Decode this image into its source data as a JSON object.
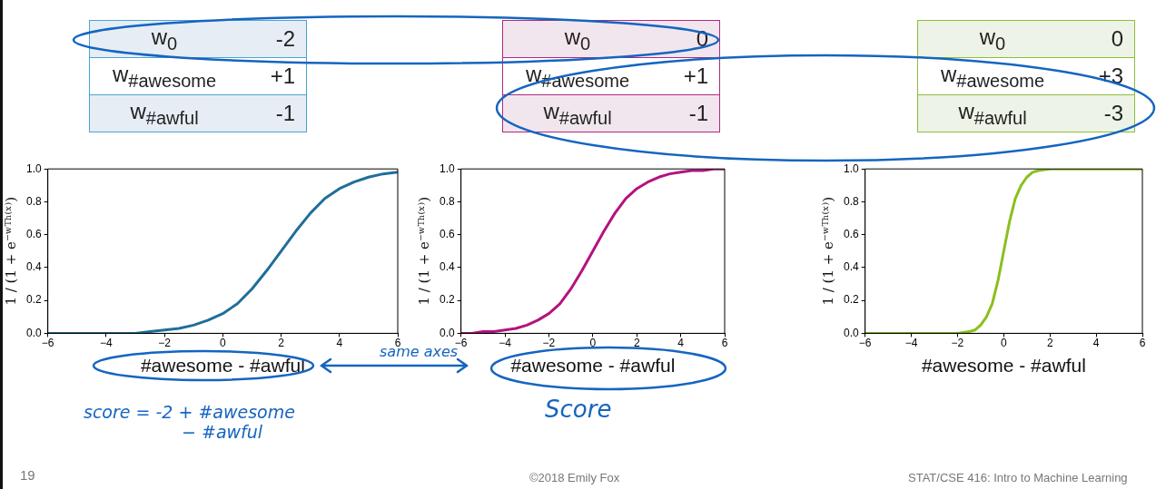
{
  "chart_data": [
    {
      "type": "line",
      "xlabel": "#awesome - #awful",
      "ylabel": "1 / (1 + e⁻ʷᵀʰ⁽ˣ⁾)",
      "x": [
        -6,
        -5.5,
        -5,
        -4.5,
        -4,
        -3.5,
        -3,
        -2.5,
        -2,
        -1.5,
        -1,
        -0.5,
        0,
        0.5,
        1,
        1.5,
        2,
        2.5,
        3,
        3.5,
        4,
        4.5,
        5,
        5.5,
        6
      ],
      "series": [
        {
          "color": "#1f6e9a",
          "values": [
            0.0,
            0.0,
            0.0,
            0.0,
            0.0,
            0.0,
            0.0,
            0.01,
            0.02,
            0.03,
            0.05,
            0.08,
            0.12,
            0.18,
            0.27,
            0.38,
            0.5,
            0.62,
            0.73,
            0.82,
            0.88,
            0.92,
            0.95,
            0.97,
            0.98
          ]
        }
      ],
      "xlim": [
        -6,
        6
      ],
      "ylim": [
        0,
        1
      ],
      "xticks": [
        {
          "value": -6,
          "label": "−6"
        },
        {
          "value": -4,
          "label": "−4"
        },
        {
          "value": -2,
          "label": "−2"
        },
        0,
        2,
        4,
        6
      ],
      "yticks": [
        {
          "value": 0,
          "label": "0.0"
        },
        {
          "value": 0.2,
          "label": "0.2"
        },
        {
          "value": 0.4,
          "label": "0.4"
        },
        {
          "value": 0.6,
          "label": "0.6"
        },
        {
          "value": 0.8,
          "label": "0.8"
        },
        {
          "value": 1,
          "label": "1.0"
        }
      ],
      "annotations": [
        "w$_{0}$",
        "-2",
        "w$_{#awesome}$",
        "+1",
        "w$_{#awful}$",
        "-1",
        "score = -2 + #awesome",
        "− #awful",
        "same axes",
        "19"
      ]
    },
    {
      "type": "line",
      "xlabel": "#awesome - #awful",
      "ylabel": "1 / (1 + e⁻ʷᵀʰ⁽ˣ⁾)",
      "x": [
        -6,
        -5.5,
        -5,
        -4.5,
        -4,
        -3.5,
        -3,
        -2.5,
        -2,
        -1.5,
        -1,
        -0.5,
        0,
        0.5,
        1,
        1.5,
        2,
        2.5,
        3,
        3.5,
        4,
        4.5,
        5,
        5.5,
        6
      ],
      "series": [
        {
          "color": "#b5127f",
          "values": [
            0.0,
            0.0,
            0.01,
            0.01,
            0.02,
            0.03,
            0.05,
            0.08,
            0.12,
            0.18,
            0.27,
            0.38,
            0.5,
            0.62,
            0.73,
            0.82,
            0.88,
            0.92,
            0.95,
            0.97,
            0.98,
            0.99,
            0.99,
            1.0,
            1.0
          ]
        }
      ],
      "xlim": [
        -6,
        6
      ],
      "ylim": [
        0,
        1
      ],
      "xticks": [
        {
          "value": -6,
          "label": "−6"
        },
        {
          "value": -4,
          "label": "−4"
        },
        {
          "value": -2,
          "label": "−2"
        },
        0,
        2,
        4,
        6
      ],
      "yticks": [
        {
          "value": 0,
          "label": "0.0"
        },
        {
          "value": 0.2,
          "label": "0.2"
        },
        {
          "value": 0.4,
          "label": "0.4"
        },
        {
          "value": 0.6,
          "label": "0.6"
        },
        {
          "value": 0.8,
          "label": "0.8"
        },
        {
          "value": 1,
          "label": "1.0"
        }
      ],
      "annotations": [
        "w$_{0}$",
        "0",
        "w$_{#awesome}$",
        "+1",
        "w$_{#awful}$",
        "-1",
        "Score",
        "©2018 Emily Fox"
      ]
    },
    {
      "type": "line",
      "xlabel": "#awesome - #awful",
      "ylabel": "1 / (1 + e⁻ʷᵀʰ⁽ˣ⁾)",
      "x": [
        -6,
        -3,
        -2,
        -1.5,
        -1.25,
        -1,
        -0.75,
        -0.5,
        -0.25,
        0,
        0.25,
        0.5,
        0.75,
        1,
        1.25,
        1.5,
        2,
        3,
        6
      ],
      "series": [
        {
          "color": "#8bbf1e",
          "values": [
            0.0,
            0.0,
            0.0,
            0.01,
            0.02,
            0.05,
            0.1,
            0.18,
            0.32,
            0.5,
            0.68,
            0.82,
            0.9,
            0.95,
            0.98,
            0.99,
            1.0,
            1.0,
            1.0
          ]
        }
      ],
      "xlim": [
        -6,
        6
      ],
      "ylim": [
        0,
        1
      ],
      "xticks": [
        {
          "value": -6,
          "label": "−6"
        },
        {
          "value": -4,
          "label": "−4"
        },
        {
          "value": -2,
          "label": "−2"
        },
        0,
        2,
        4,
        6
      ],
      "yticks": [
        {
          "value": 0,
          "label": "0.0"
        },
        {
          "value": 0.2,
          "label": "0.2"
        },
        {
          "value": 0.4,
          "label": "0.4"
        },
        {
          "value": 0.6,
          "label": "0.6"
        },
        {
          "value": 0.8,
          "label": "0.8"
        },
        {
          "value": 1,
          "label": "1.0"
        }
      ],
      "annotations": [
        "w$_{0}$",
        "0",
        "w$_{#awesome}$",
        "+3",
        "w$_{#awful}$",
        "-3",
        "STAT/CSE 416: Intro to Machine Learning"
      ]
    }
  ]
}
